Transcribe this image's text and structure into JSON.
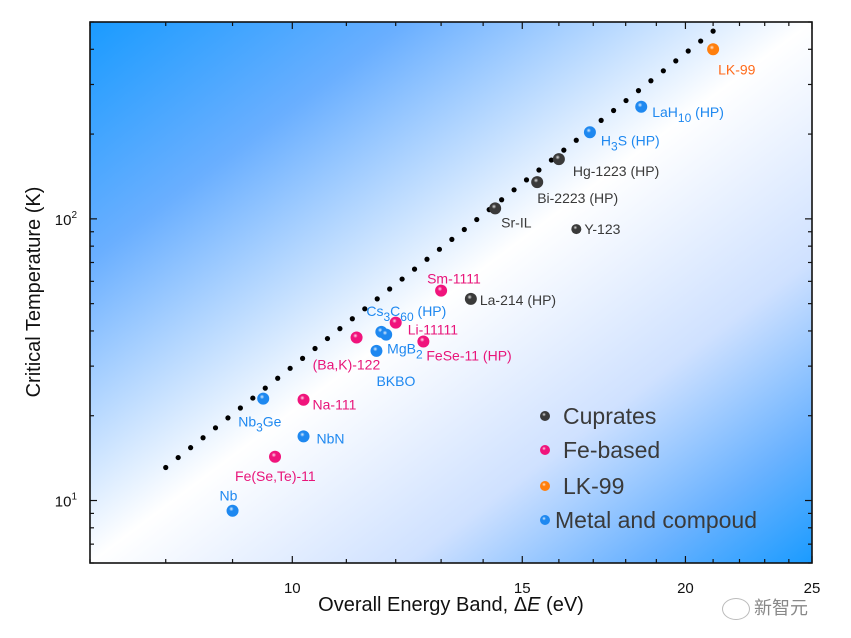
{
  "chart_data": {
    "type": "scatter",
    "title": "",
    "xlabel": "Overall Energy Band, ΔE (eV)",
    "xlabel_parts": [
      "Overall Energy Band, ",
      "Δ",
      "E",
      " (eV)"
    ],
    "ylabel": "Critical Temperature (K)",
    "xscale": "log",
    "yscale": "log",
    "xlim": [
      7.0,
      25
    ],
    "ylim": [
      6,
      500
    ],
    "x_ticks": [
      {
        "value": 10,
        "label": "10"
      },
      {
        "value": 15,
        "label": "15"
      },
      {
        "value": 20,
        "label": "20"
      },
      {
        "value": 25,
        "label": "25"
      }
    ],
    "y_ticks": [
      {
        "value": 10,
        "base": "10",
        "exp": "1"
      },
      {
        "value": 100,
        "base": "10",
        "exp": "2"
      }
    ],
    "grid": false,
    "background": "diagonal blue-white gradient",
    "trend_line": {
      "style": "dotted",
      "color": "#000000",
      "x": [
        8.0,
        21.0
      ],
      "y": [
        13.1,
        464
      ]
    },
    "series": [
      {
        "name": "Cuprates",
        "color": "#3a3a3a",
        "label_color": "#3a3a3a",
        "points": [
          {
            "label": "Hg-1223 (HP)",
            "x": 16.0,
            "y": 163
          },
          {
            "label": "Bi-2223 (HP)",
            "x": 15.4,
            "y": 135
          },
          {
            "label": "Sr-IL",
            "x": 14.3,
            "y": 109
          },
          {
            "label": "Y-123",
            "x": 16.5,
            "y": 92
          },
          {
            "label": "La-214 (HP)",
            "x": 13.7,
            "y": 52
          }
        ]
      },
      {
        "name": "Fe-based",
        "color": "#f0147c",
        "label_color": "#e8157a",
        "points": [
          {
            "label": "Sm-1111",
            "x": 13.0,
            "y": 55.6
          },
          {
            "label": "Li-11111",
            "x": 12.0,
            "y": 42.8
          },
          {
            "label": "(Ba,K)-122",
            "x": 11.2,
            "y": 37.9
          },
          {
            "label": "FeSe-11 (HP)",
            "x": 12.6,
            "y": 36.7
          },
          {
            "label": "Na-111",
            "x": 10.2,
            "y": 22.8
          },
          {
            "label": "Fe(Se,Te)-11",
            "x": 9.7,
            "y": 14.3
          }
        ]
      },
      {
        "name": "LK-99",
        "color": "#ff7f0e",
        "label_color": "#ff6a1a",
        "points": [
          {
            "label": "LK-99",
            "x": 21.0,
            "y": 400
          }
        ]
      },
      {
        "name": "Metal and compoud",
        "color": "#1e88f0",
        "label_color": "#1e88f0",
        "points": [
          {
            "label": "LaH10 (HP)",
            "x": 18.5,
            "y": 250
          },
          {
            "label": "H3S (HP)",
            "x": 16.9,
            "y": 203
          },
          {
            "label": "Cs3C60 (HP)",
            "x": 11.7,
            "y": 39.7
          },
          {
            "label": "MgB2",
            "x": 11.8,
            "y": 38.8
          },
          {
            "label": "BKBO",
            "x": 11.6,
            "y": 34
          },
          {
            "label": "Nb3Ge",
            "x": 9.5,
            "y": 23
          },
          {
            "label": "NbN",
            "x": 10.2,
            "y": 16.9
          },
          {
            "label": "Nb",
            "x": 9.0,
            "y": 9.2
          }
        ]
      }
    ],
    "legend": {
      "placement": "bottom-right",
      "entries": [
        "Cuprates",
        "Fe-based",
        "LK-99",
        "Metal and compoud"
      ]
    }
  },
  "watermark": {
    "text": "新智元",
    "icon": "wechat-icon"
  }
}
